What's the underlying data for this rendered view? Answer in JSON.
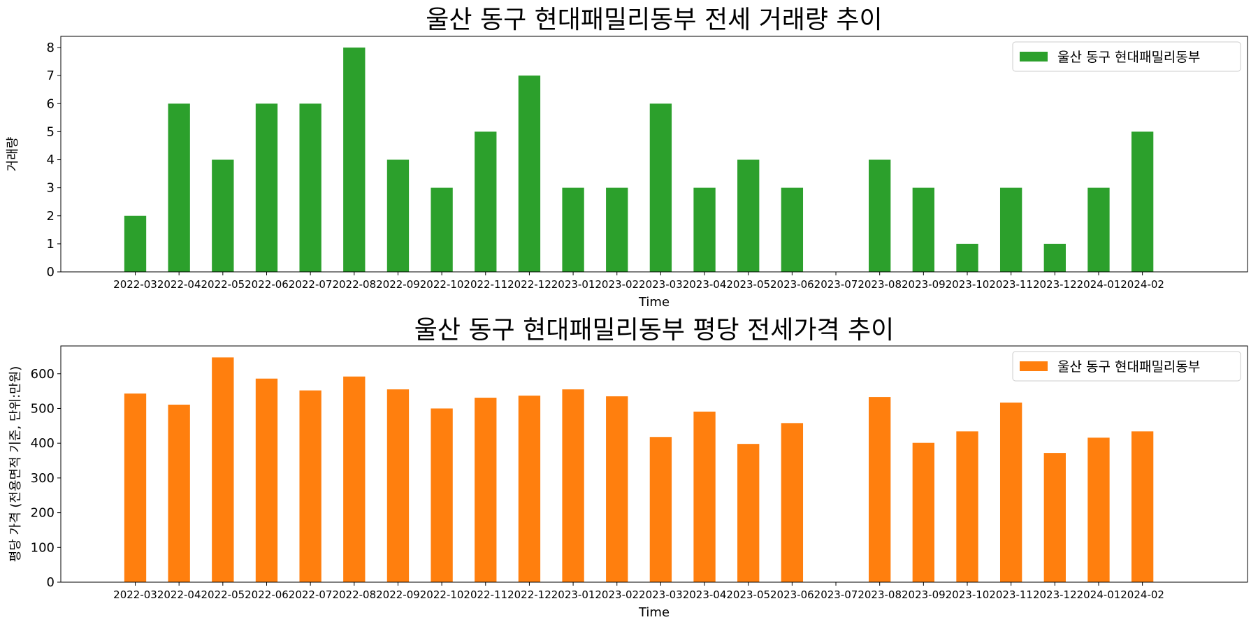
{
  "chart_data": [
    {
      "type": "bar",
      "title": "울산 동구 현대패밀리동부 전세 거래량 추이",
      "xlabel": "Time",
      "ylabel": "거래량",
      "categories": [
        "2022-03",
        "2022-04",
        "2022-05",
        "2022-06",
        "2022-07",
        "2022-08",
        "2022-09",
        "2022-10",
        "2022-11",
        "2022-12",
        "2023-01",
        "2023-02",
        "2023-03",
        "2023-04",
        "2023-05",
        "2023-06",
        "2023-07",
        "2023-08",
        "2023-09",
        "2023-10",
        "2023-11",
        "2023-12",
        "2024-01",
        "2024-02"
      ],
      "series": [
        {
          "name": "울산 동구 현대패밀리동부",
          "color": "#2ca02c",
          "values": [
            2,
            6,
            4,
            6,
            6,
            8,
            4,
            3,
            5,
            7,
            3,
            3,
            6,
            3,
            4,
            3,
            0,
            4,
            3,
            1,
            3,
            1,
            3,
            5
          ]
        }
      ],
      "ylim": [
        0,
        8.4
      ],
      "yticks": [
        0,
        1,
        2,
        3,
        4,
        5,
        6,
        7,
        8
      ],
      "legend": "top-right",
      "grid": false
    },
    {
      "type": "bar",
      "title": "울산 동구 현대패밀리동부 평당 전세가격 추이",
      "xlabel": "Time",
      "ylabel": "평당 가격 (전용면적 기준, 단위:만원)",
      "categories": [
        "2022-03",
        "2022-04",
        "2022-05",
        "2022-06",
        "2022-07",
        "2022-08",
        "2022-09",
        "2022-10",
        "2022-11",
        "2022-12",
        "2023-01",
        "2023-02",
        "2023-03",
        "2023-04",
        "2023-05",
        "2023-06",
        "2023-07",
        "2023-08",
        "2023-09",
        "2023-10",
        "2023-11",
        "2023-12",
        "2024-01",
        "2024-02"
      ],
      "series": [
        {
          "name": "울산 동구 현대패밀리동부",
          "color": "#ff7f0e",
          "values": [
            543,
            511,
            647,
            586,
            552,
            592,
            555,
            500,
            531,
            537,
            555,
            535,
            418,
            491,
            398,
            458,
            null,
            533,
            401,
            434,
            517,
            372,
            416,
            434
          ]
        }
      ],
      "ylim": [
        0,
        680
      ],
      "yticks": [
        0,
        100,
        200,
        300,
        400,
        500,
        600
      ],
      "legend": "top-right",
      "grid": false
    }
  ]
}
